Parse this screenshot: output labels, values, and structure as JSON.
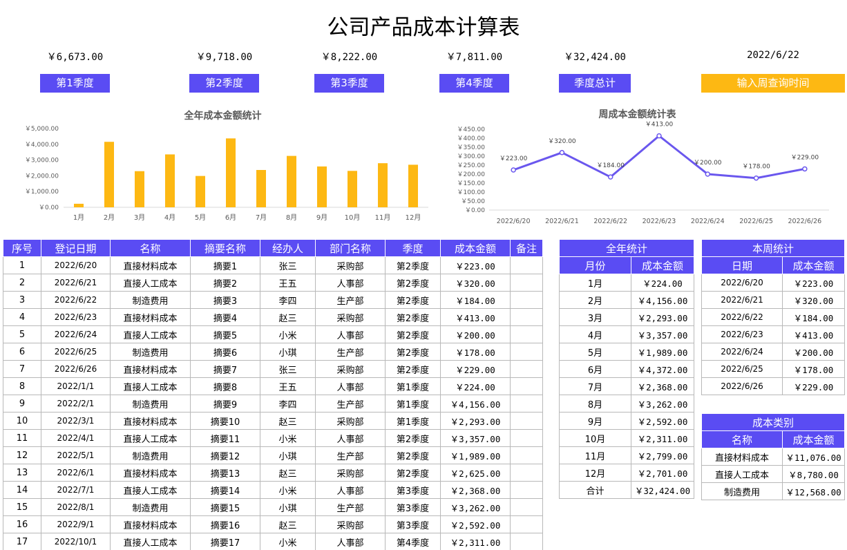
{
  "title": "公司产品成本计算表",
  "summary": {
    "amounts": [
      "￥6,673.00",
      "￥9,718.00",
      "￥8,222.00",
      "￥7,811.00",
      "￥32,424.00",
      "2022/6/22"
    ],
    "buttons": [
      "第1季度",
      "第2季度",
      "第3季度",
      "第4季度",
      "季度总计",
      "输入周查询时间"
    ]
  },
  "colors": {
    "accent": "#5a4cf3",
    "bar": "#fdb813",
    "line": "#6a57ee"
  },
  "chart_data": [
    {
      "type": "bar",
      "title": "全年成本金额统计",
      "categories": [
        "1月",
        "2月",
        "3月",
        "4月",
        "5月",
        "6月",
        "7月",
        "8月",
        "9月",
        "10月",
        "11月",
        "12月"
      ],
      "values": [
        224,
        4156,
        2293,
        3357,
        1989,
        4372,
        2368,
        3262,
        2592,
        2311,
        2799,
        2701
      ],
      "ylim": [
        0,
        5000
      ],
      "yticks": [
        "￥0.00",
        "￥1,000.00",
        "￥2,000.00",
        "￥3,000.00",
        "￥4,000.00",
        "￥5,000.00"
      ],
      "grid": false
    },
    {
      "type": "line",
      "title": "周成本金额统计表",
      "categories": [
        "2022/6/20",
        "2022/6/21",
        "2022/6/22",
        "2022/6/23",
        "2022/6/24",
        "2022/6/25",
        "2022/6/26"
      ],
      "values": [
        223,
        320,
        184,
        413,
        200,
        178,
        229
      ],
      "labels": [
        "￥223.00",
        "￥320.00",
        "￥184.00",
        "￥413.00",
        "￥200.00",
        "￥178.00",
        "￥229.00"
      ],
      "ylim": [
        0,
        450
      ],
      "yticks": [
        "￥0.00",
        "￥50.00",
        "￥100.00",
        "￥150.00",
        "￥200.00",
        "￥250.00",
        "￥300.00",
        "￥350.00",
        "￥400.00",
        "￥450.00"
      ],
      "grid": false
    }
  ],
  "main_table": {
    "headers": [
      "序号",
      "登记日期",
      "名称",
      "摘要名称",
      "经办人",
      "部门名称",
      "季度",
      "成本金额",
      "备注"
    ],
    "rows": [
      [
        "1",
        "2022/6/20",
        "直接材料成本",
        "摘要1",
        "张三",
        "采购部",
        "第2季度",
        "￥223.00",
        ""
      ],
      [
        "2",
        "2022/6/21",
        "直接人工成本",
        "摘要2",
        "王五",
        "人事部",
        "第2季度",
        "￥320.00",
        ""
      ],
      [
        "3",
        "2022/6/22",
        "制造费用",
        "摘要3",
        "李四",
        "生产部",
        "第2季度",
        "￥184.00",
        ""
      ],
      [
        "4",
        "2022/6/23",
        "直接材料成本",
        "摘要4",
        "赵三",
        "采购部",
        "第2季度",
        "￥413.00",
        ""
      ],
      [
        "5",
        "2022/6/24",
        "直接人工成本",
        "摘要5",
        "小米",
        "人事部",
        "第2季度",
        "￥200.00",
        ""
      ],
      [
        "6",
        "2022/6/25",
        "制造费用",
        "摘要6",
        "小琪",
        "生产部",
        "第2季度",
        "￥178.00",
        ""
      ],
      [
        "7",
        "2022/6/26",
        "直接材料成本",
        "摘要7",
        "张三",
        "采购部",
        "第2季度",
        "￥229.00",
        ""
      ],
      [
        "8",
        "2022/1/1",
        "直接人工成本",
        "摘要8",
        "王五",
        "人事部",
        "第1季度",
        "￥224.00",
        ""
      ],
      [
        "9",
        "2022/2/1",
        "制造费用",
        "摘要9",
        "李四",
        "生产部",
        "第1季度",
        "￥4,156.00",
        ""
      ],
      [
        "10",
        "2022/3/1",
        "直接材料成本",
        "摘要10",
        "赵三",
        "采购部",
        "第1季度",
        "￥2,293.00",
        ""
      ],
      [
        "11",
        "2022/4/1",
        "直接人工成本",
        "摘要11",
        "小米",
        "人事部",
        "第2季度",
        "￥3,357.00",
        ""
      ],
      [
        "12",
        "2022/5/1",
        "制造费用",
        "摘要12",
        "小琪",
        "生产部",
        "第2季度",
        "￥1,989.00",
        ""
      ],
      [
        "13",
        "2022/6/1",
        "直接材料成本",
        "摘要13",
        "赵三",
        "采购部",
        "第2季度",
        "￥2,625.00",
        ""
      ],
      [
        "14",
        "2022/7/1",
        "直接人工成本",
        "摘要14",
        "小米",
        "人事部",
        "第3季度",
        "￥2,368.00",
        ""
      ],
      [
        "15",
        "2022/8/1",
        "制造费用",
        "摘要15",
        "小琪",
        "生产部",
        "第3季度",
        "￥3,262.00",
        ""
      ],
      [
        "16",
        "2022/9/1",
        "直接材料成本",
        "摘要16",
        "赵三",
        "采购部",
        "第3季度",
        "￥2,592.00",
        ""
      ],
      [
        "17",
        "2022/10/1",
        "直接人工成本",
        "摘要17",
        "小米",
        "人事部",
        "第4季度",
        "￥2,311.00",
        ""
      ]
    ]
  },
  "annual_table": {
    "title": "全年统计",
    "headers": [
      "月份",
      "成本金额"
    ],
    "rows": [
      [
        "1月",
        "￥224.00"
      ],
      [
        "2月",
        "￥4,156.00"
      ],
      [
        "3月",
        "￥2,293.00"
      ],
      [
        "4月",
        "￥3,357.00"
      ],
      [
        "5月",
        "￥1,989.00"
      ],
      [
        "6月",
        "￥4,372.00"
      ],
      [
        "7月",
        "￥2,368.00"
      ],
      [
        "8月",
        "￥3,262.00"
      ],
      [
        "9月",
        "￥2,592.00"
      ],
      [
        "10月",
        "￥2,311.00"
      ],
      [
        "11月",
        "￥2,799.00"
      ],
      [
        "12月",
        "￥2,701.00"
      ],
      [
        "合计",
        "￥32,424.00"
      ]
    ]
  },
  "weekly_table": {
    "title": "本周统计",
    "headers": [
      "日期",
      "成本金额"
    ],
    "rows": [
      [
        "2022/6/20",
        "￥223.00"
      ],
      [
        "2022/6/21",
        "￥320.00"
      ],
      [
        "2022/6/22",
        "￥184.00"
      ],
      [
        "2022/6/23",
        "￥413.00"
      ],
      [
        "2022/6/24",
        "￥200.00"
      ],
      [
        "2022/6/25",
        "￥178.00"
      ],
      [
        "2022/6/26",
        "￥229.00"
      ]
    ]
  },
  "category_table": {
    "title": "成本类别",
    "headers": [
      "名称",
      "成本金额"
    ],
    "rows": [
      [
        "直接材料成本",
        "￥11,076.00"
      ],
      [
        "直接人工成本",
        "￥8,780.00"
      ],
      [
        "制造费用",
        "￥12,568.00"
      ]
    ]
  }
}
